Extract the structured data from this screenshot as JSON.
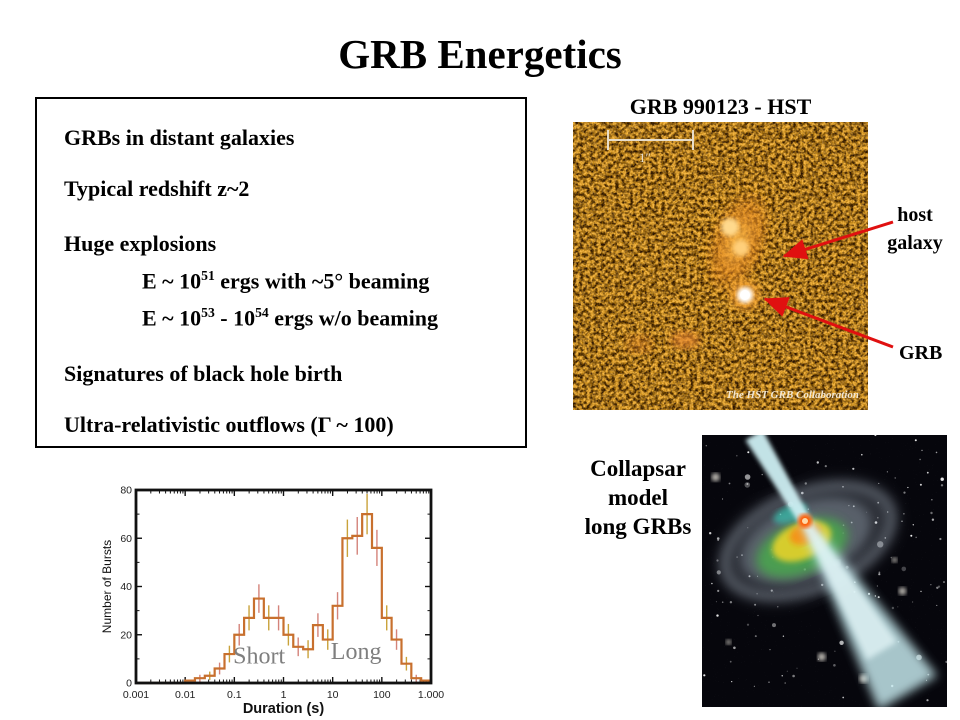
{
  "slide": {
    "title": "GRB Energetics",
    "background": "#ffffff"
  },
  "bullets": {
    "line1": "GRBs in distant galaxies",
    "line2": "Typical redshift z~2",
    "line3": "Huge explosions",
    "sub1": {
      "pre": "E ~ 10",
      "sup": "51",
      "post": " ergs with ~5° beaming"
    },
    "sub2": {
      "pre": "E ~ 10",
      "sup1": "53",
      "mid": " - 10",
      "sup2": "54",
      "post": " ergs w/o beaming"
    },
    "line4": "Signatures of black hole birth",
    "line5": "Ultra-relativistic outflows (Γ ~ 100)"
  },
  "hst": {
    "title": "GRB 990123 - HST",
    "scale_bar_label": "1″",
    "credit": "The HST GRB Collaboration",
    "label_host_line1": "host",
    "label_host_line2": "galaxy",
    "label_grb": "GRB",
    "arrow_color": "#e01010",
    "image_base_color": "#c86a12"
  },
  "chart_data": {
    "type": "bar",
    "title": "",
    "xlabel": "Duration (s)",
    "ylabel": "Number of Bursts",
    "xscale": "log",
    "xlim": [
      0.001,
      1000
    ],
    "ylim": [
      0,
      80
    ],
    "x_ticks": [
      0.001,
      0.01,
      0.1,
      1,
      10,
      100,
      1000
    ],
    "x_tick_labels": [
      "0.001",
      "0.01",
      "0.1",
      "1",
      "10",
      "100",
      "1.000"
    ],
    "y_ticks": [
      0,
      20,
      40,
      60,
      80
    ],
    "y_minor_ticks": [
      10,
      30,
      50,
      70
    ],
    "bin_edges": [
      0.01,
      0.0158,
      0.0251,
      0.0398,
      0.0631,
      0.1,
      0.158,
      0.251,
      0.398,
      0.631,
      1.0,
      1.58,
      2.51,
      3.98,
      6.31,
      10,
      15.8,
      25.1,
      39.8,
      63.1,
      100,
      158,
      251,
      398,
      631,
      1000
    ],
    "counts": [
      1,
      2,
      3,
      6,
      12,
      20,
      27,
      35,
      27,
      27,
      20,
      15,
      14,
      24,
      18,
      32,
      60,
      61,
      70,
      56,
      27,
      18,
      8,
      2,
      1
    ],
    "annotations": [
      {
        "text": "Short",
        "x": 0.32,
        "y": 8
      },
      {
        "text": "Long",
        "x": 30,
        "y": 10
      }
    ],
    "grid": false,
    "legend": null,
    "line_color": "#c8702e",
    "errorbar_colors": [
      "#c9a23a",
      "#d4837a"
    ],
    "annotation_color": "#7f7f7f",
    "frame_color": "#111111"
  },
  "collapsar": {
    "caption_line1": "Collapsar",
    "caption_line2": "model",
    "caption_line3": "long GRBs"
  }
}
